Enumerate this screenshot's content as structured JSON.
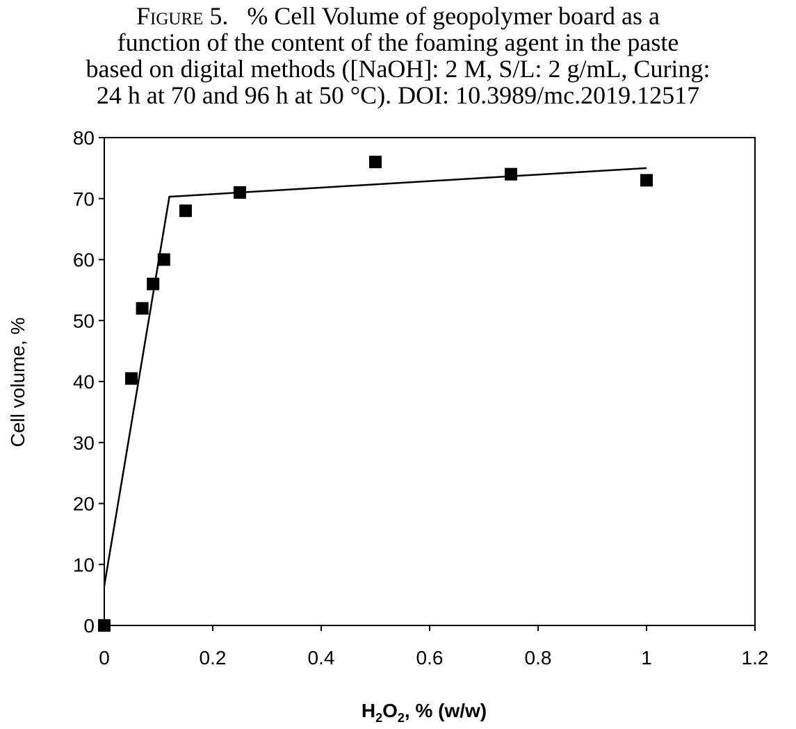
{
  "caption": {
    "figure_label": "Figure 5.",
    "lines": [
      "% Cell Volume of geopolymer board as a",
      "function of the content of the foaming agent in the paste",
      "based on digital methods ([NaOH]: 2 M, S/L: 2 g/mL, Curing:",
      "24 h at 70 and 96 h at 50 °C). DOI: 10.3989/mc.2019.12517"
    ]
  },
  "chart_data": {
    "type": "scatter",
    "title": "",
    "xlabel": "H2O2, % (w/w)",
    "ylabel": "Cell volume, %",
    "xlim": [
      0,
      1.2
    ],
    "ylim": [
      0,
      80
    ],
    "x_ticks": [
      "0",
      "0.2",
      "0.4",
      "0.6",
      "0.8",
      "1",
      "1.2"
    ],
    "y_ticks": [
      "0",
      "10",
      "20",
      "30",
      "40",
      "50",
      "60",
      "70",
      "80"
    ],
    "grid": false,
    "series": [
      {
        "marker": "square",
        "color": "#000000",
        "points": [
          {
            "x": 0,
            "y": 0
          },
          {
            "x": 0.05,
            "y": 40.5
          },
          {
            "x": 0.07,
            "y": 52
          },
          {
            "x": 0.09,
            "y": 56
          },
          {
            "x": 0.11,
            "y": 60
          },
          {
            "x": 0.15,
            "y": 68
          },
          {
            "x": 0.25,
            "y": 71
          },
          {
            "x": 0.5,
            "y": 76
          },
          {
            "x": 0.75,
            "y": 74
          },
          {
            "x": 1.0,
            "y": 73
          }
        ]
      }
    ],
    "trend_line": [
      {
        "x": 0,
        "y": 6.5
      },
      {
        "x": 0.12,
        "y": 70.3
      },
      {
        "x": 1.0,
        "y": 75
      }
    ]
  }
}
